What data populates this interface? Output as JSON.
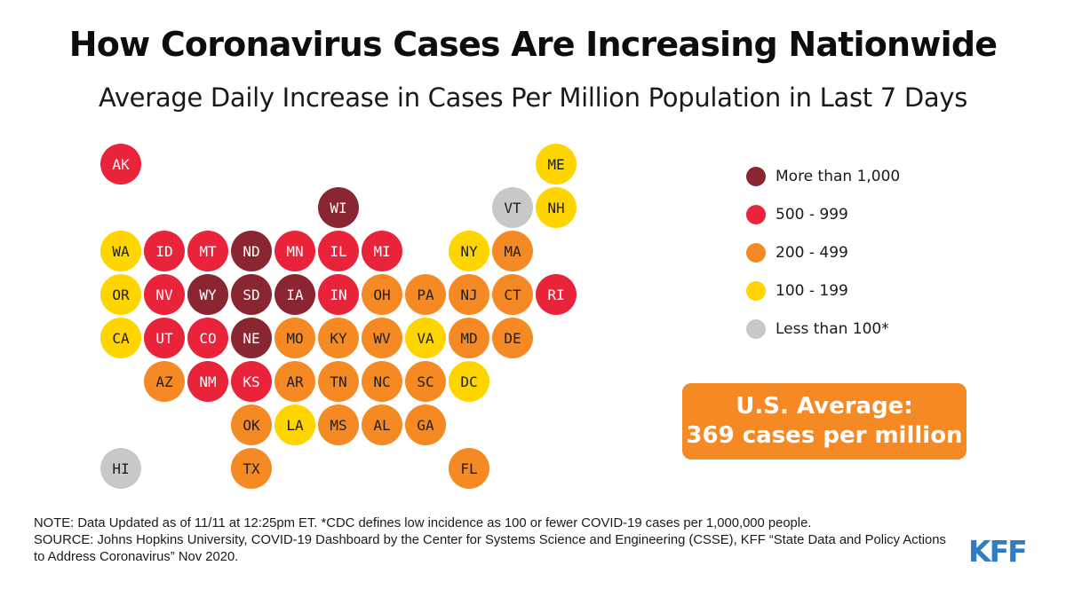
{
  "title": "How Coronavirus Cases Are Increasing Nationwide",
  "subtitle": "Average Daily Increase in Cases Per Million Population in Last 7 Days",
  "colors": {
    "more_than_1000": "#8a2532",
    "500_999": "#e8233a",
    "200_499": "#f58a25",
    "100_199": "#ffd500",
    "less_than_100": "#c8c8c8"
  },
  "legend": [
    {
      "category": "more_than_1000",
      "label": "More than 1,000"
    },
    {
      "category": "500_999",
      "label": "500 - 999"
    },
    {
      "category": "200_499",
      "label": "200 - 499"
    },
    {
      "category": "100_199",
      "label": "100 - 199"
    },
    {
      "category": "less_than_100",
      "label": "Less than 100*"
    }
  ],
  "states": [
    {
      "abbr": "AK",
      "row": 0,
      "col": 0,
      "category": "500_999"
    },
    {
      "abbr": "ME",
      "row": 0,
      "col": 10,
      "category": "100_199"
    },
    {
      "abbr": "WI",
      "row": 1,
      "col": 5,
      "category": "more_than_1000"
    },
    {
      "abbr": "VT",
      "row": 1,
      "col": 9,
      "category": "less_than_100"
    },
    {
      "abbr": "NH",
      "row": 1,
      "col": 10,
      "category": "100_199"
    },
    {
      "abbr": "WA",
      "row": 2,
      "col": 0,
      "category": "100_199"
    },
    {
      "abbr": "ID",
      "row": 2,
      "col": 1,
      "category": "500_999"
    },
    {
      "abbr": "MT",
      "row": 2,
      "col": 2,
      "category": "500_999"
    },
    {
      "abbr": "ND",
      "row": 2,
      "col": 3,
      "category": "more_than_1000"
    },
    {
      "abbr": "MN",
      "row": 2,
      "col": 4,
      "category": "500_999"
    },
    {
      "abbr": "IL",
      "row": 2,
      "col": 5,
      "category": "500_999"
    },
    {
      "abbr": "MI",
      "row": 2,
      "col": 6,
      "category": "500_999"
    },
    {
      "abbr": "NY",
      "row": 2,
      "col": 8,
      "category": "100_199"
    },
    {
      "abbr": "MA",
      "row": 2,
      "col": 9,
      "category": "200_499"
    },
    {
      "abbr": "OR",
      "row": 3,
      "col": 0,
      "category": "100_199"
    },
    {
      "abbr": "NV",
      "row": 3,
      "col": 1,
      "category": "500_999"
    },
    {
      "abbr": "WY",
      "row": 3,
      "col": 2,
      "category": "more_than_1000"
    },
    {
      "abbr": "SD",
      "row": 3,
      "col": 3,
      "category": "more_than_1000"
    },
    {
      "abbr": "IA",
      "row": 3,
      "col": 4,
      "category": "more_than_1000"
    },
    {
      "abbr": "IN",
      "row": 3,
      "col": 5,
      "category": "500_999"
    },
    {
      "abbr": "OH",
      "row": 3,
      "col": 6,
      "category": "200_499"
    },
    {
      "abbr": "PA",
      "row": 3,
      "col": 7,
      "category": "200_499"
    },
    {
      "abbr": "NJ",
      "row": 3,
      "col": 8,
      "category": "200_499"
    },
    {
      "abbr": "CT",
      "row": 3,
      "col": 9,
      "category": "200_499"
    },
    {
      "abbr": "RI",
      "row": 3,
      "col": 10,
      "category": "500_999"
    },
    {
      "abbr": "CA",
      "row": 4,
      "col": 0,
      "category": "100_199"
    },
    {
      "abbr": "UT",
      "row": 4,
      "col": 1,
      "category": "500_999"
    },
    {
      "abbr": "CO",
      "row": 4,
      "col": 2,
      "category": "500_999"
    },
    {
      "abbr": "NE",
      "row": 4,
      "col": 3,
      "category": "more_than_1000"
    },
    {
      "abbr": "MO",
      "row": 4,
      "col": 4,
      "category": "200_499"
    },
    {
      "abbr": "KY",
      "row": 4,
      "col": 5,
      "category": "200_499"
    },
    {
      "abbr": "WV",
      "row": 4,
      "col": 6,
      "category": "200_499"
    },
    {
      "abbr": "VA",
      "row": 4,
      "col": 7,
      "category": "100_199"
    },
    {
      "abbr": "MD",
      "row": 4,
      "col": 8,
      "category": "200_499"
    },
    {
      "abbr": "DE",
      "row": 4,
      "col": 9,
      "category": "200_499"
    },
    {
      "abbr": "AZ",
      "row": 5,
      "col": 1,
      "category": "200_499"
    },
    {
      "abbr": "NM",
      "row": 5,
      "col": 2,
      "category": "500_999"
    },
    {
      "abbr": "KS",
      "row": 5,
      "col": 3,
      "category": "500_999"
    },
    {
      "abbr": "AR",
      "row": 5,
      "col": 4,
      "category": "200_499"
    },
    {
      "abbr": "TN",
      "row": 5,
      "col": 5,
      "category": "200_499"
    },
    {
      "abbr": "NC",
      "row": 5,
      "col": 6,
      "category": "200_499"
    },
    {
      "abbr": "SC",
      "row": 5,
      "col": 7,
      "category": "200_499"
    },
    {
      "abbr": "DC",
      "row": 5,
      "col": 8,
      "category": "100_199"
    },
    {
      "abbr": "OK",
      "row": 6,
      "col": 3,
      "category": "200_499"
    },
    {
      "abbr": "LA",
      "row": 6,
      "col": 4,
      "category": "100_199"
    },
    {
      "abbr": "MS",
      "row": 6,
      "col": 5,
      "category": "200_499"
    },
    {
      "abbr": "AL",
      "row": 6,
      "col": 6,
      "category": "200_499"
    },
    {
      "abbr": "GA",
      "row": 6,
      "col": 7,
      "category": "200_499"
    },
    {
      "abbr": "HI",
      "row": 7,
      "col": 0,
      "category": "less_than_100"
    },
    {
      "abbr": "TX",
      "row": 7,
      "col": 3,
      "category": "200_499"
    },
    {
      "abbr": "FL",
      "row": 7,
      "col": 8,
      "category": "200_499"
    }
  ],
  "us_average": {
    "line1": "U.S. Average:",
    "line2": "369 cases per million"
  },
  "note": "NOTE: Data Updated as of 11/11 at 12:25pm ET. *CDC defines low incidence as 100 or fewer COVID-19 cases per 1,000,000 people.",
  "source": "SOURCE: Johns Hopkins University, COVID-19 Dashboard by the Center for Systems Science and Engineering (CSSE), KFF “State Data and Policy Actions to Address Coronavirus” Nov 2020.",
  "logo": "KFF"
}
